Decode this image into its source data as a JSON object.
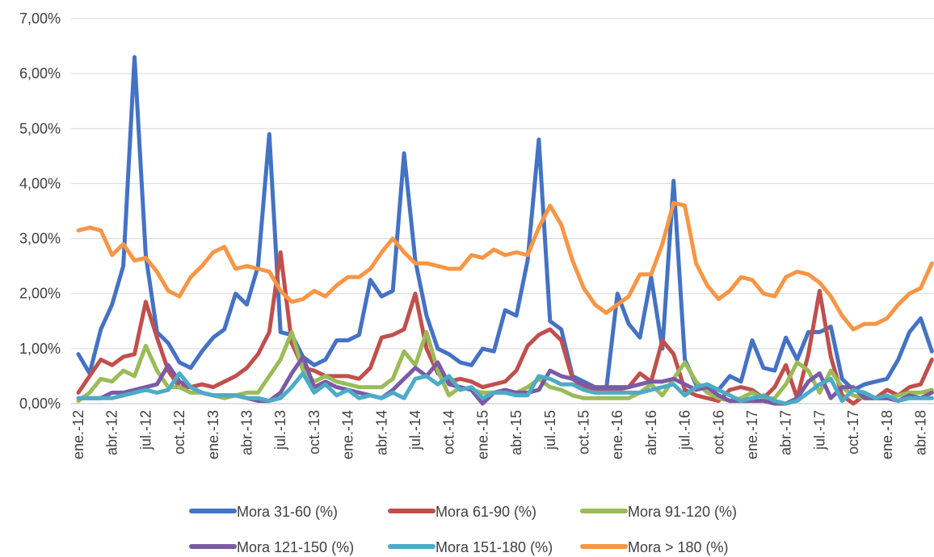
{
  "chart_data": {
    "type": "line",
    "categories": [
      "ene.-12",
      null,
      null,
      "abr.-12",
      null,
      null,
      "jul.-12",
      null,
      null,
      "oct.-12",
      null,
      null,
      "ene.-13",
      null,
      null,
      "abr.-13",
      null,
      null,
      "jul.-13",
      null,
      null,
      "oct.-13",
      null,
      null,
      "ene.-14",
      null,
      null,
      "abr.-14",
      null,
      null,
      "jul.-14",
      null,
      null,
      "oct.-14",
      null,
      null,
      "ene.-15",
      null,
      null,
      "abr.-15",
      null,
      null,
      "jul.-15",
      null,
      null,
      "oct.-15",
      null,
      null,
      "ene.-16",
      null,
      null,
      "abr.-16",
      null,
      null,
      "jul.-16",
      null,
      null,
      "oct.-16",
      null,
      null,
      "ene.-17",
      null,
      null,
      "abr.-17",
      null,
      null,
      "jul.-17",
      null,
      null,
      "oct.-17",
      null,
      null,
      "ene.-18",
      null,
      null,
      "abr.-18",
      null
    ],
    "series": [
      {
        "name": "Mora 31-60 (%)",
        "color": "#4472c4",
        "values": [
          0.9,
          0.55,
          1.35,
          1.8,
          2.5,
          6.3,
          2.7,
          1.3,
          1.1,
          0.75,
          0.65,
          0.95,
          1.2,
          1.35,
          2.0,
          1.8,
          2.5,
          4.9,
          1.3,
          1.25,
          0.85,
          0.7,
          0.8,
          1.15,
          1.15,
          1.25,
          2.25,
          1.95,
          2.05,
          4.55,
          2.6,
          1.6,
          1.0,
          0.9,
          0.75,
          0.7,
          1.0,
          0.95,
          1.7,
          1.6,
          2.6,
          4.8,
          1.5,
          1.35,
          0.5,
          0.4,
          0.3,
          0.25,
          2.0,
          1.45,
          1.2,
          2.3,
          1.0,
          4.05,
          0.8,
          0.35,
          0.3,
          0.25,
          0.5,
          0.4,
          1.15,
          0.65,
          0.6,
          1.2,
          0.8,
          1.3,
          1.3,
          1.4,
          0.45,
          0.25,
          0.35,
          0.4,
          0.45,
          0.8,
          1.3,
          1.55,
          0.95
        ]
      },
      {
        "name": "Mora 61-90 (%)",
        "color": "#c0504d",
        "values": [
          0.2,
          0.5,
          0.8,
          0.7,
          0.85,
          0.9,
          1.85,
          1.2,
          0.6,
          0.3,
          0.3,
          0.35,
          0.3,
          0.4,
          0.5,
          0.65,
          0.9,
          1.3,
          2.75,
          1.1,
          0.65,
          0.6,
          0.5,
          0.5,
          0.5,
          0.45,
          0.65,
          1.2,
          1.25,
          1.35,
          2.0,
          1.0,
          0.55,
          0.4,
          0.45,
          0.4,
          0.3,
          0.35,
          0.4,
          0.6,
          1.05,
          1.25,
          1.35,
          1.15,
          0.45,
          0.3,
          0.25,
          0.25,
          0.25,
          0.3,
          0.55,
          0.4,
          1.15,
          0.9,
          0.25,
          0.15,
          0.1,
          0.05,
          0.25,
          0.3,
          0.25,
          0.1,
          0.3,
          0.7,
          0.1,
          0.9,
          2.05,
          0.85,
          0.15,
          0.0,
          0.15,
          0.1,
          0.25,
          0.15,
          0.3,
          0.35,
          0.8
        ]
      },
      {
        "name": "Mora 91-120 (%)",
        "color": "#9bbb59",
        "values": [
          0.05,
          0.2,
          0.45,
          0.4,
          0.6,
          0.5,
          1.05,
          0.6,
          0.3,
          0.3,
          0.2,
          0.2,
          0.15,
          0.1,
          0.15,
          0.2,
          0.2,
          0.5,
          0.8,
          1.3,
          0.6,
          0.4,
          0.5,
          0.4,
          0.35,
          0.3,
          0.3,
          0.3,
          0.45,
          0.95,
          0.7,
          1.3,
          0.6,
          0.15,
          0.3,
          0.25,
          0.2,
          0.2,
          0.2,
          0.2,
          0.3,
          0.45,
          0.3,
          0.25,
          0.15,
          0.1,
          0.1,
          0.1,
          0.1,
          0.1,
          0.2,
          0.35,
          0.15,
          0.45,
          0.75,
          0.4,
          0.2,
          0.1,
          0.05,
          0.1,
          0.2,
          0.1,
          0.1,
          0.35,
          0.75,
          0.6,
          0.2,
          0.6,
          0.3,
          0.15,
          0.1,
          0.1,
          0.1,
          0.15,
          0.2,
          0.2,
          0.25
        ]
      },
      {
        "name": "Mora 121-150 (%)",
        "color": "#7b5aa6",
        "values": [
          0.1,
          0.1,
          0.1,
          0.2,
          0.2,
          0.25,
          0.3,
          0.35,
          0.7,
          0.4,
          0.3,
          0.2,
          0.15,
          0.15,
          0.15,
          0.1,
          0.05,
          0.05,
          0.2,
          0.55,
          0.85,
          0.3,
          0.4,
          0.3,
          0.25,
          0.2,
          0.15,
          0.1,
          0.25,
          0.45,
          0.65,
          0.5,
          0.75,
          0.35,
          0.3,
          0.25,
          0.0,
          0.2,
          0.25,
          0.2,
          0.2,
          0.25,
          0.6,
          0.5,
          0.45,
          0.35,
          0.3,
          0.3,
          0.3,
          0.3,
          0.35,
          0.4,
          0.4,
          0.45,
          0.35,
          0.25,
          0.3,
          0.15,
          0.05,
          0.05,
          0.05,
          0.05,
          0.0,
          0.0,
          0.1,
          0.4,
          0.55,
          0.1,
          0.3,
          0.3,
          0.1,
          0.1,
          0.1,
          0.05,
          0.15,
          0.1,
          0.2
        ]
      },
      {
        "name": "Mora 151-180 (%)",
        "color": "#4bacc6",
        "values": [
          0.1,
          0.1,
          0.1,
          0.1,
          0.15,
          0.2,
          0.25,
          0.2,
          0.25,
          0.55,
          0.3,
          0.2,
          0.15,
          0.15,
          0.15,
          0.1,
          0.1,
          0.05,
          0.1,
          0.3,
          0.55,
          0.2,
          0.35,
          0.15,
          0.25,
          0.1,
          0.15,
          0.1,
          0.2,
          0.1,
          0.45,
          0.5,
          0.35,
          0.5,
          0.25,
          0.3,
          0.1,
          0.2,
          0.2,
          0.15,
          0.15,
          0.5,
          0.45,
          0.35,
          0.35,
          0.25,
          0.2,
          0.2,
          0.2,
          0.2,
          0.2,
          0.25,
          0.3,
          0.35,
          0.15,
          0.3,
          0.35,
          0.25,
          0.15,
          0.05,
          0.1,
          0.15,
          0.05,
          0.0,
          0.05,
          0.2,
          0.35,
          0.45,
          0.05,
          0.25,
          0.2,
          0.1,
          0.15,
          0.05,
          0.1,
          0.1,
          0.1
        ]
      },
      {
        "name": "Mora > 180 (%)",
        "color": "#f79646",
        "values": [
          3.15,
          3.2,
          3.15,
          2.7,
          2.9,
          2.6,
          2.65,
          2.4,
          2.05,
          1.95,
          2.3,
          2.5,
          2.75,
          2.85,
          2.45,
          2.5,
          2.45,
          2.4,
          2.05,
          1.85,
          1.9,
          2.05,
          1.95,
          2.15,
          2.3,
          2.3,
          2.45,
          2.75,
          3.0,
          2.75,
          2.55,
          2.55,
          2.5,
          2.45,
          2.45,
          2.7,
          2.65,
          2.8,
          2.7,
          2.75,
          2.7,
          3.2,
          3.6,
          3.25,
          2.6,
          2.1,
          1.8,
          1.65,
          1.8,
          1.95,
          2.35,
          2.35,
          2.9,
          3.65,
          3.6,
          2.55,
          2.15,
          1.9,
          2.05,
          2.3,
          2.25,
          2.0,
          1.95,
          2.3,
          2.4,
          2.35,
          2.2,
          1.95,
          1.6,
          1.35,
          1.45,
          1.45,
          1.55,
          1.8,
          2.0,
          2.1,
          2.55
        ]
      }
    ],
    "ylim": [
      0,
      7
    ],
    "yticks": [
      {
        "value": 0,
        "label": "0,00%"
      },
      {
        "value": 1,
        "label": "1,00%"
      },
      {
        "value": 2,
        "label": "2,00%"
      },
      {
        "value": 3,
        "label": "3,00%"
      },
      {
        "value": 4,
        "label": "4,00%"
      },
      {
        "value": 5,
        "label": "5,00%"
      },
      {
        "value": 6,
        "label": "6,00%"
      },
      {
        "value": 7,
        "label": "7,00%"
      }
    ],
    "grid": true
  }
}
